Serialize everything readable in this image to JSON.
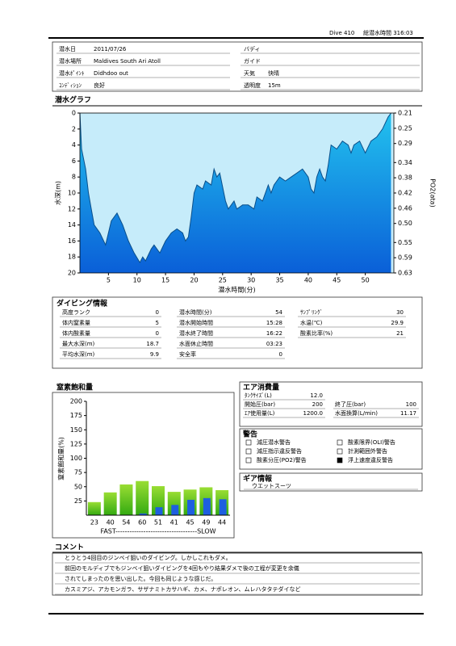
{
  "header": {
    "dive": "Dive 410",
    "total": "総潜水時間 316:03"
  },
  "info": {
    "left": [
      {
        "label": "潜水日",
        "value": "2011/07/26"
      },
      {
        "label": "潜水場所",
        "value": "Maldives South Ari Atoll"
      },
      {
        "label": "潜水ﾎﾟｲﾝﾄ",
        "value": "Didhdoo out"
      },
      {
        "label": "ｺﾝﾃﾞｨｼｮﾝ",
        "value": "良好"
      }
    ],
    "right": [
      {
        "label": "バディ"
      },
      {
        "label": "ガイド"
      },
      {
        "label": "天気",
        "value": "快晴"
      },
      {
        "label": "透明度",
        "value": "15m"
      }
    ]
  },
  "dive_graph": {
    "title": "潜水グラフ",
    "type": "area",
    "x_label": "潜水時間(分)",
    "y_label": "水深(m)",
    "y2_label": "PO2(ata)",
    "x": [
      0,
      0.3,
      1,
      1.5,
      2,
      2.5,
      3.5,
      4.5,
      5.5,
      6.5,
      7.5,
      8.5,
      9.5,
      10.5,
      11,
      11.5,
      12.5,
      13,
      14,
      15,
      16,
      17,
      18,
      18.5,
      19,
      19.5,
      20,
      20.5,
      21.5,
      22,
      23,
      23.5,
      24,
      24.5,
      25.5,
      26,
      27,
      27.5,
      28.5,
      29.5,
      30.5,
      31,
      32,
      33,
      33.5,
      34,
      35,
      36,
      37,
      38,
      39,
      40,
      40.5,
      41,
      41.5,
      42,
      42.5,
      43,
      43.5,
      44,
      45,
      46,
      47,
      47.5,
      48,
      49,
      50,
      51,
      52,
      53,
      54,
      54.5
    ],
    "values": [
      0,
      4.5,
      7,
      10,
      12,
      14,
      15,
      16.5,
      13.5,
      12.5,
      14,
      16,
      17.5,
      18.7,
      18,
      18.5,
      17,
      16.5,
      17.5,
      16,
      15,
      14.5,
      15,
      16,
      15.5,
      13,
      10,
      9,
      9.5,
      8.5,
      9,
      7,
      8,
      7.5,
      11,
      12,
      11,
      12,
      11.5,
      11.5,
      12,
      10.5,
      11,
      9,
      10,
      9,
      8,
      8.5,
      8,
      7.5,
      7,
      8,
      9.5,
      10,
      8,
      7,
      8,
      8.5,
      6.5,
      4,
      4.5,
      3.5,
      4,
      5,
      4,
      3.5,
      5,
      3.5,
      3,
      2,
      0.5,
      0
    ],
    "color": "#0a4f8a",
    "xlim": [
      0,
      55
    ],
    "xticks": [
      5,
      10,
      15,
      20,
      25,
      30,
      35,
      40,
      45,
      50
    ],
    "ylim": [
      0,
      20
    ],
    "y_inverted": true,
    "yticks": [
      0,
      2,
      4,
      6,
      8,
      10,
      12,
      14,
      16,
      18,
      20
    ],
    "y2lim": [
      0.21,
      0.63
    ],
    "y2ticks": [
      0.21,
      0.25,
      0.29,
      0.34,
      0.38,
      0.42,
      0.46,
      {
        "value": 0.5,
        "label": "0.50"
      },
      0.55,
      0.59,
      0.63
    ]
  },
  "dive_info": {
    "title": "ダイビング情報",
    "columns": [
      [
        {
          "label": "高度ランク",
          "value": "0"
        },
        {
          "label": "体内窒素量",
          "value": "5"
        },
        {
          "label": "体内酸素量",
          "value": "0"
        },
        {
          "label": "最大水深(m)",
          "value": "18.7"
        },
        {
          "label": "平均水深(m)",
          "value": "9.9"
        }
      ],
      [
        {
          "label": "潜水時間(分)",
          "value": "54"
        },
        {
          "label": "潜水開始時間",
          "value": "15:28"
        },
        {
          "label": "潜水終了時間",
          "value": "16:22"
        },
        {
          "label": "水面休止時間",
          "value": "03:23"
        },
        {
          "label": "安全率",
          "value": "0"
        }
      ],
      [
        {
          "label": "ｻﾝﾌﾟﾘﾝｸﾞ",
          "value": "30"
        },
        {
          "label": "水温(℃)",
          "value": "29.9"
        },
        {
          "label": "酸素比率(%)",
          "value": "21"
        }
      ]
    ]
  },
  "nitrogen": {
    "title": "窒素飽和量",
    "type": "bar",
    "y_label": "窒素飽和量(%)",
    "categories": [
      "23",
      "40",
      "54",
      "60",
      "51",
      "41",
      "45",
      "49",
      "44"
    ],
    "series": [
      {
        "color": "#66cc22",
        "values": [
          23,
          40,
          54,
          60,
          51,
          41,
          45,
          49,
          44
        ]
      },
      {
        "color": "#1e5fe0",
        "values": [
          0,
          0,
          0,
          3,
          14,
          18,
          27,
          30,
          28
        ]
      }
    ],
    "ylim": [
      0,
      200
    ],
    "yticks": [
      25,
      50,
      75,
      100,
      125,
      150,
      175,
      200
    ],
    "x_note": "FAST-----------------------------------SLOW"
  },
  "air": {
    "title": "エア消費量",
    "fields": [
      {
        "label": "ﾀﾝｸｻｲｽﾞ(L)",
        "value": "12.0"
      },
      {
        "label": "開始圧(bar)",
        "value": "200"
      },
      {
        "label": "終了圧(bar)",
        "value": "100"
      },
      {
        "label": "ｴｱ使用量(L)",
        "value": "1200.0"
      },
      {
        "label": "水面換算(L/min)",
        "value": "11.17"
      }
    ]
  },
  "warnings": {
    "title": "警告",
    "items": [
      {
        "label": "減圧潜水警告",
        "checked": false
      },
      {
        "label": "酸素限界(OLI)警告",
        "checked": false
      },
      {
        "label": "減圧指示違反警告",
        "checked": false
      },
      {
        "label": "計測範囲外警告",
        "checked": false
      },
      {
        "label": "酸素分圧(PO2)警告",
        "checked": false
      },
      {
        "label": "浮上速度違反警告",
        "checked": true
      }
    ]
  },
  "gear": {
    "title": "ギア情報",
    "items": [
      "ウエットスーツ"
    ]
  },
  "comments": {
    "title": "コメント",
    "lines": [
      "とうとう4回目のジンベイ狙いのダイビング。しかしこれもダメ。",
      "前回のモルディブでもジンベイ狙いダイビングを4回もやり結果ダメで後の工程が変更を余儀",
      "されてしまったのを思い出した。今回も同じような感じだ。",
      "カスミアジ、アカモンガラ、サザナミトカサハギ、カメ、ナポレオン、ムレハタタテダイなど"
    ]
  }
}
